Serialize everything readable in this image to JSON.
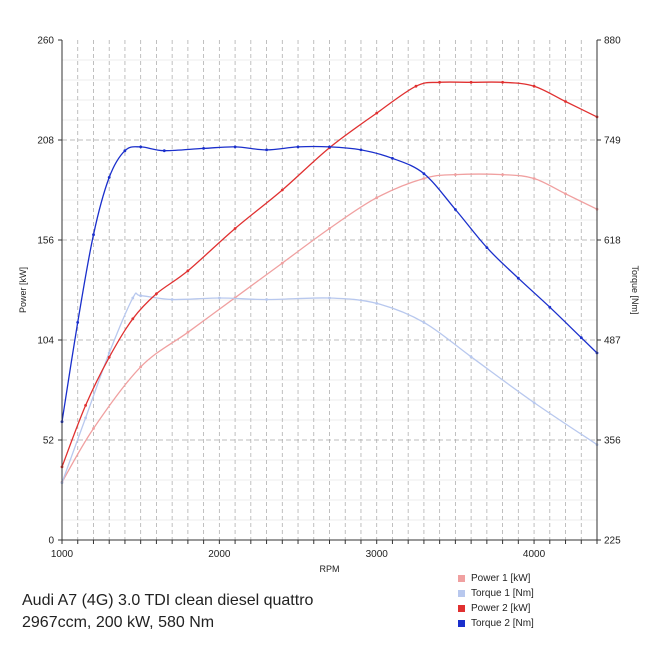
{
  "chart_data": {
    "type": "line",
    "xlabel": "RPM",
    "ylabel_left": "Power [kW]",
    "ylabel_right": "Torque [Nm]",
    "xlim": [
      1000,
      4400
    ],
    "ylim_left": [
      0,
      260
    ],
    "ylim_right": [
      225,
      880
    ],
    "x_ticks": [
      1000,
      2000,
      3000,
      4000
    ],
    "y_ticks_left": [
      0,
      52,
      104,
      156,
      208,
      260
    ],
    "y_ticks_right": [
      225,
      356,
      487,
      618,
      749,
      880
    ],
    "grid": true,
    "legend_position": "bottom-right",
    "series": [
      {
        "name": "Power 1 [kW]",
        "axis": "left",
        "color": "#f0a0a0",
        "x": [
          1000,
          1200,
          1500,
          1800,
          2100,
          2400,
          2700,
          3000,
          3300,
          3500,
          3800,
          4000,
          4200,
          4400
        ],
        "values": [
          30,
          58,
          90,
          108,
          126,
          144,
          162,
          178,
          188,
          190,
          190,
          188,
          180,
          172
        ]
      },
      {
        "name": "Torque 1 [Nm]",
        "axis": "right",
        "color": "#b8c8ee",
        "x": [
          1000,
          1150,
          1300,
          1450,
          1500,
          1700,
          2000,
          2300,
          2700,
          3000,
          3300,
          3600,
          4000,
          4400
        ],
        "values": [
          300,
          385,
          470,
          542,
          545,
          540,
          542,
          540,
          542,
          535,
          510,
          465,
          405,
          350
        ]
      },
      {
        "name": "Power 2 [kW]",
        "axis": "left",
        "color": "#e03030",
        "x": [
          1000,
          1150,
          1300,
          1450,
          1600,
          1800,
          2100,
          2400,
          2700,
          3000,
          3250,
          3400,
          3600,
          3800,
          4000,
          4200,
          4400
        ],
        "values": [
          38,
          70,
          95,
          115,
          128,
          140,
          162,
          182,
          204,
          222,
          236,
          238,
          238,
          238,
          236,
          228,
          220
        ]
      },
      {
        "name": "Torque 2 [Nm]",
        "axis": "right",
        "color": "#1a2fcc",
        "x": [
          1000,
          1100,
          1200,
          1300,
          1400,
          1500,
          1650,
          1900,
          2100,
          2300,
          2500,
          2700,
          2900,
          3100,
          3300,
          3500,
          3700,
          3900,
          4100,
          4300,
          4400
        ],
        "values": [
          380,
          510,
          625,
          700,
          735,
          740,
          735,
          738,
          740,
          736,
          740,
          740,
          736,
          725,
          705,
          658,
          608,
          568,
          530,
          490,
          470
        ]
      }
    ]
  },
  "caption": {
    "line1": "Audi A7 (4G) 3.0 TDI clean diesel quattro",
    "line2": "2967ccm, 200 kW, 580 Nm"
  }
}
